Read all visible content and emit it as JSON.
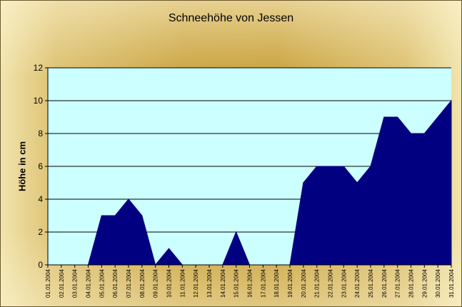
{
  "chart_data": {
    "type": "area",
    "title": "Schneehöhe von Jessen",
    "xlabel": "",
    "ylabel": "Höhe in cm",
    "ylim": [
      0,
      12
    ],
    "yticks": [
      0,
      2,
      4,
      6,
      8,
      10,
      12
    ],
    "grid": true,
    "legend": "none",
    "categories": [
      "01.01.2004",
      "02.01.2004",
      "03.01.2004",
      "04.01.2004",
      "05.01.2004",
      "06.01.2004",
      "07.01.2004",
      "08.01.2004",
      "09.01.2004",
      "10.01.2004",
      "11.01.2004",
      "12.01.2004",
      "13.01.2004",
      "14.01.2004",
      "15.01.2004",
      "16.01.2004",
      "17.01.2004",
      "18.01.2004",
      "19.01.2004",
      "20.01.2004",
      "21.01.2004",
      "22.01.2004",
      "23.01.2004",
      "24.01.2004",
      "25.01.2004",
      "26.01.2004",
      "27.01.2004",
      "28.01.2004",
      "29.01.2004",
      "30.01.2004",
      "31.01.2004"
    ],
    "series": [
      {
        "values": [
          0,
          0,
          0,
          0,
          3,
          3,
          4,
          3,
          0,
          1,
          0,
          0,
          0,
          0,
          2,
          0,
          0,
          0,
          0,
          5,
          6,
          6,
          6,
          5,
          6,
          9,
          9,
          8,
          8,
          9,
          10
        ]
      }
    ],
    "colors": {
      "area": "#000080",
      "plot_background": "#ccffff",
      "gridline": "#000000"
    }
  }
}
